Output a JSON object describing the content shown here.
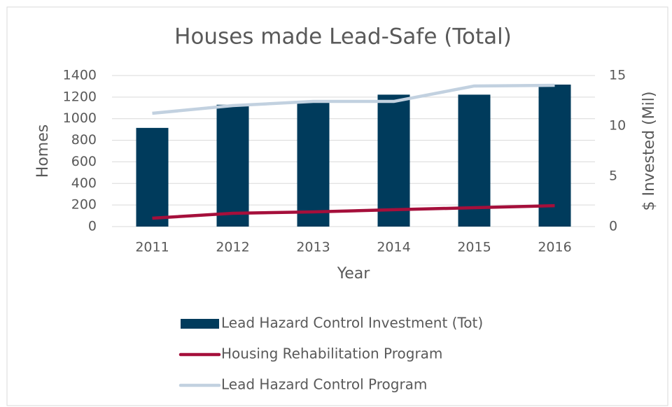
{
  "chart_data": {
    "type": "bar",
    "title": "Houses made Lead-Safe (Total)",
    "x_label": "Year",
    "y_label": "Homes",
    "y2_label": "$ Invested (Mil)",
    "categories": [
      "2011",
      "2012",
      "2013",
      "2014",
      "2015",
      "2016"
    ],
    "series": [
      {
        "name": "Lead Hazard Control Investment (Tot)",
        "type": "bar",
        "axis": "y2",
        "color": "#003b5c",
        "values": [
          9.8,
          12.1,
          12.4,
          13.1,
          13.1,
          14.1
        ]
      },
      {
        "name": "Housing Rehabilitation Program",
        "type": "line",
        "color": "#a50f3b",
        "values": [
          78,
          123,
          136,
          156,
          175,
          194
        ]
      },
      {
        "name": "Lead Hazard Control Program",
        "type": "line",
        "color": "#c2d1e0",
        "values": [
          1050,
          1121,
          1160,
          1160,
          1303,
          1309
        ]
      }
    ],
    "ylim": [
      0,
      1400
    ],
    "yticks": [
      0,
      200,
      400,
      600,
      800,
      1000,
      1200,
      1400
    ],
    "y2lim": [
      0,
      15
    ],
    "y2ticks": [
      0,
      5,
      10,
      15
    ],
    "grid": true,
    "legend": "bottom"
  }
}
